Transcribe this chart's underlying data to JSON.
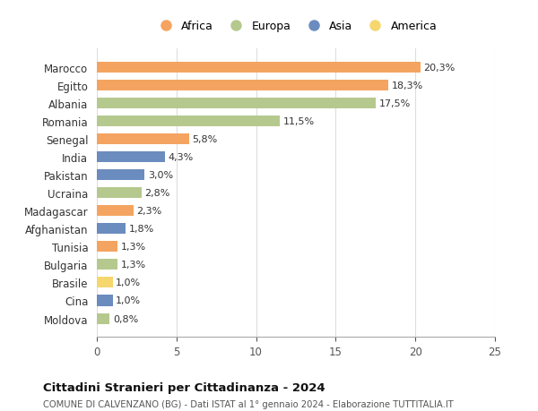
{
  "countries": [
    "Moldova",
    "Cina",
    "Brasile",
    "Bulgaria",
    "Tunisia",
    "Afghanistan",
    "Madagascar",
    "Ucraina",
    "Pakistan",
    "India",
    "Senegal",
    "Romania",
    "Albania",
    "Egitto",
    "Marocco"
  ],
  "values": [
    0.8,
    1.0,
    1.0,
    1.3,
    1.3,
    1.8,
    2.3,
    2.8,
    3.0,
    4.3,
    5.8,
    11.5,
    17.5,
    18.3,
    20.3
  ],
  "labels": [
    "0,8%",
    "1,0%",
    "1,0%",
    "1,3%",
    "1,3%",
    "1,8%",
    "2,3%",
    "2,8%",
    "3,0%",
    "4,3%",
    "5,8%",
    "11,5%",
    "17,5%",
    "18,3%",
    "20,3%"
  ],
  "continents": [
    "Europa",
    "Asia",
    "America",
    "Europa",
    "Africa",
    "Asia",
    "Africa",
    "Europa",
    "Asia",
    "Asia",
    "Africa",
    "Europa",
    "Europa",
    "Africa",
    "Africa"
  ],
  "continent_colors": {
    "Africa": "#F4A460",
    "Europa": "#B5C98E",
    "Asia": "#6B8CBE",
    "America": "#F5D76E"
  },
  "legend_order": [
    "Africa",
    "Europa",
    "Asia",
    "America"
  ],
  "title": "Cittadini Stranieri per Cittadinanza - 2024",
  "subtitle": "COMUNE DI CALVENZANO (BG) - Dati ISTAT al 1° gennaio 2024 - Elaborazione TUTTITALIA.IT",
  "xlim": [
    0,
    25
  ],
  "xticks": [
    0,
    5,
    10,
    15,
    20,
    25
  ],
  "background_color": "#ffffff",
  "bar_height": 0.6,
  "grid_color": "#dddddd"
}
